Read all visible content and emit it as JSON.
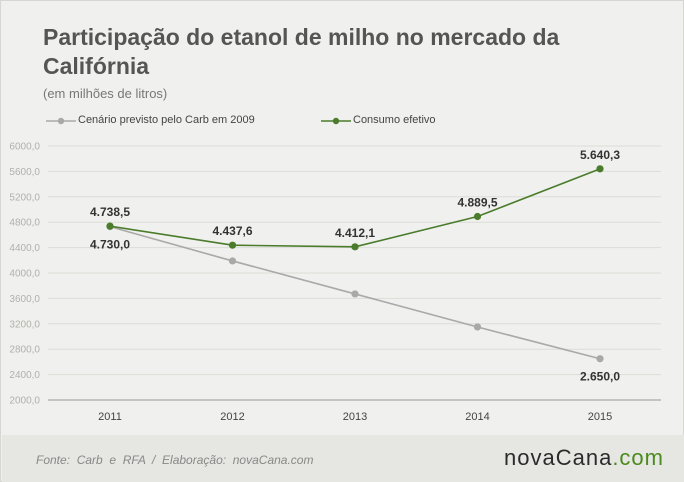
{
  "header": {
    "title": "Participação do etanol de milho no mercado da Califórnia",
    "subtitle": "(em milhões de litros)"
  },
  "footer": {
    "source": "Fonte:  Carb  e  RFA  /  Elaboração:  novaCana.com",
    "brand_part1": "nova",
    "brand_part2": "Cana",
    "brand_part3": ".com"
  },
  "colors": {
    "gray_series": "#a9a9a9",
    "green_series": "#4a7c2b",
    "brand_dark": "#2b2b2b",
    "brand_green": "#4a8a1f"
  },
  "chart_data": {
    "type": "line",
    "x": [
      "2011",
      "2012",
      "2013",
      "2014",
      "2015"
    ],
    "ylim": [
      2000,
      6000
    ],
    "yticks": [
      "2000,0",
      "2400,0",
      "2800,0",
      "3200,0",
      "3600,0",
      "4000,0",
      "4400,0",
      "4800,0",
      "5200,0",
      "5600,0",
      "6000,0"
    ],
    "grid": true,
    "legend_position": "top-left",
    "series": [
      {
        "name": "Cenário previsto pelo Carb em 2009",
        "values": [
          4730.0,
          4190,
          3670,
          3150,
          2650.0
        ],
        "color": "#a9a9a9",
        "labels": [
          "4.730,0",
          "",
          "",
          "",
          "2.650,0"
        ]
      },
      {
        "name": "Consumo efetivo",
        "values": [
          4738.5,
          4437.6,
          4412.1,
          4889.5,
          5640.3
        ],
        "color": "#4a7c2b",
        "labels": [
          "4.738,5",
          "4.437,6",
          "4.412,1",
          "4.889,5",
          "5.640,3"
        ]
      }
    ]
  }
}
